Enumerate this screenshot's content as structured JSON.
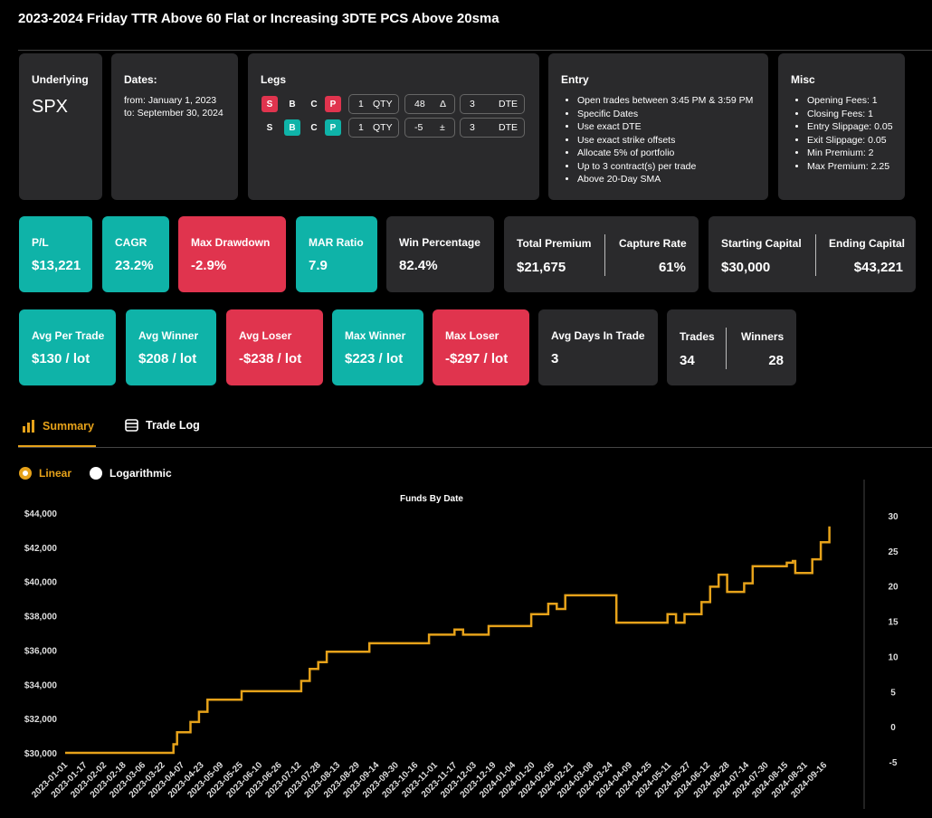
{
  "page_title": "2023-2024 Friday TTR Above 60 Flat or Increasing 3DTE PCS Above 20sma",
  "underlying": {
    "label": "Underlying",
    "value": "SPX"
  },
  "dates": {
    "label": "Dates:",
    "from": "from: January 1, 2023",
    "to": "to: September 30, 2024"
  },
  "legs": {
    "label": "Legs",
    "rows": [
      {
        "s": "S",
        "b": "B",
        "c": "C",
        "p": "P",
        "qty": "1",
        "qty_unit": "QTY",
        "delta": "48",
        "delta_sym": "Δ",
        "dte": "3",
        "dte_unit": "DTE"
      },
      {
        "s": "S",
        "b": "B",
        "c": "C",
        "p": "P",
        "qty": "1",
        "qty_unit": "QTY",
        "delta": "-5",
        "delta_sym": "±",
        "dte": "3",
        "dte_unit": "DTE"
      }
    ]
  },
  "entry": {
    "label": "Entry",
    "items": [
      "Open trades between 3:45 PM & 3:59 PM",
      "Specific Dates",
      "Use exact DTE",
      "Use exact strike offsets",
      "Allocate 5% of portfolio",
      "Up to 3 contract(s) per trade",
      "Above 20-Day SMA"
    ]
  },
  "misc": {
    "label": "Misc",
    "items": [
      "Opening Fees: 1",
      "Closing Fees: 1",
      "Entry Slippage: 0.05",
      "Exit Slippage: 0.05",
      "Min Premium: 2",
      "Max Premium: 2.25"
    ]
  },
  "stats_row1": {
    "pl": {
      "label": "P/L",
      "value": "$13,221"
    },
    "cagr": {
      "label": "CAGR",
      "value": "23.2%"
    },
    "max_drawdown": {
      "label": "Max Drawdown",
      "value": "-2.9%"
    },
    "mar": {
      "label": "MAR Ratio",
      "value": "7.9"
    },
    "win_pct": {
      "label": "Win Percentage",
      "value": "82.4%"
    },
    "total_premium": {
      "label": "Total Premium",
      "value": "$21,675"
    },
    "capture_rate": {
      "label": "Capture Rate",
      "value": "61%"
    },
    "starting_capital": {
      "label": "Starting Capital",
      "value": "$30,000"
    },
    "ending_capital": {
      "label": "Ending Capital",
      "value": "$43,221"
    }
  },
  "stats_row2": {
    "avg_per_trade": {
      "label": "Avg Per Trade",
      "value": "$130 / lot"
    },
    "avg_winner": {
      "label": "Avg Winner",
      "value": "$208 / lot"
    },
    "avg_loser": {
      "label": "Avg Loser",
      "value": "-$238 / lot"
    },
    "max_winner": {
      "label": "Max Winner",
      "value": "$223 / lot"
    },
    "max_loser": {
      "label": "Max Loser",
      "value": "-$297 / lot"
    },
    "avg_days": {
      "label": "Avg Days In Trade",
      "value": "3"
    },
    "trades": {
      "label": "Trades",
      "value": "34"
    },
    "winners": {
      "label": "Winners",
      "value": "28"
    }
  },
  "tabs": {
    "summary": "Summary",
    "trade_log": "Trade Log"
  },
  "scale": {
    "linear": "Linear",
    "log": "Logarithmic"
  },
  "colors": {
    "teal": "#0fb3a8",
    "red": "#e0344e",
    "accent": "#e6a21a",
    "card": "#2a2a2c"
  },
  "chart_data": {
    "type": "line",
    "title": "Funds By Date",
    "y_ticks": [
      "$30,000",
      "$32,000",
      "$34,000",
      "$36,000",
      "$38,000",
      "$40,000",
      "$42,000",
      "$44,000"
    ],
    "ylim": [
      30000,
      44000
    ],
    "y2_ticks": [
      "-5",
      "0",
      "5",
      "10",
      "15",
      "20",
      "25",
      "30"
    ],
    "y2lim": [
      -5,
      30
    ],
    "x_ticks": [
      "2023-01-01",
      "2023-01-17",
      "2023-02-02",
      "2023-02-18",
      "2023-03-06",
      "2023-03-22",
      "2023-04-07",
      "2023-04-23",
      "2023-05-09",
      "2023-05-25",
      "2023-06-10",
      "2023-06-26",
      "2023-07-12",
      "2023-07-28",
      "2023-08-13",
      "2023-08-29",
      "2023-09-14",
      "2023-09-30",
      "2023-10-16",
      "2023-11-01",
      "2023-11-17",
      "2023-12-03",
      "2023-12-19",
      "2024-01-04",
      "2024-01-20",
      "2024-02-05",
      "2024-02-21",
      "2024-03-08",
      "2024-03-24",
      "2024-04-09",
      "2024-04-25",
      "2024-05-11",
      "2024-05-27",
      "2024-06-12",
      "2024-06-28",
      "2024-07-14",
      "2024-07-30",
      "2024-08-15",
      "2024-08-31",
      "2024-09-16"
    ],
    "series": [
      {
        "name": "Funds",
        "color": "#e6a21a",
        "points": [
          [
            "2023-01-01",
            30000
          ],
          [
            "2023-03-31",
            30000
          ],
          [
            "2023-03-31",
            30500
          ],
          [
            "2023-04-03",
            30500
          ],
          [
            "2023-04-03",
            31200
          ],
          [
            "2023-04-14",
            31200
          ],
          [
            "2023-04-14",
            31800
          ],
          [
            "2023-04-21",
            31800
          ],
          [
            "2023-04-21",
            32400
          ],
          [
            "2023-04-28",
            32400
          ],
          [
            "2023-04-28",
            33100
          ],
          [
            "2023-05-26",
            33100
          ],
          [
            "2023-05-26",
            33600
          ],
          [
            "2023-07-14",
            33600
          ],
          [
            "2023-07-14",
            34200
          ],
          [
            "2023-07-21",
            34200
          ],
          [
            "2023-07-21",
            34900
          ],
          [
            "2023-07-28",
            34900
          ],
          [
            "2023-07-28",
            35300
          ],
          [
            "2023-08-04",
            35300
          ],
          [
            "2023-08-04",
            35900
          ],
          [
            "2023-09-08",
            35900
          ],
          [
            "2023-09-08",
            36400
          ],
          [
            "2023-10-27",
            36400
          ],
          [
            "2023-10-27",
            36900
          ],
          [
            "2023-11-17",
            36900
          ],
          [
            "2023-11-17",
            37200
          ],
          [
            "2023-11-24",
            37200
          ],
          [
            "2023-11-24",
            37200
          ],
          [
            "2023-11-24",
            36900
          ],
          [
            "2023-11-24",
            36900
          ],
          [
            "2023-11-24",
            36900
          ],
          [
            "2023-12-15",
            36900
          ],
          [
            "2023-12-15",
            37400
          ],
          [
            "2024-01-19",
            37400
          ],
          [
            "2024-01-19",
            38100
          ],
          [
            "2024-02-02",
            38100
          ],
          [
            "2024-02-02",
            38700
          ],
          [
            "2024-02-09",
            38700
          ],
          [
            "2024-02-09",
            38400
          ],
          [
            "2024-02-14",
            38400
          ],
          [
            "2024-02-14",
            38400
          ],
          [
            "2024-02-16",
            38400
          ],
          [
            "2024-02-16",
            39200
          ],
          [
            "2024-03-29",
            39200
          ],
          [
            "2024-03-29",
            37600
          ],
          [
            "2024-05-10",
            37600
          ],
          [
            "2024-05-10",
            38100
          ],
          [
            "2024-05-17",
            38100
          ],
          [
            "2024-05-17",
            37600
          ],
          [
            "2024-05-24",
            37600
          ],
          [
            "2024-05-24",
            38100
          ],
          [
            "2024-06-07",
            38100
          ],
          [
            "2024-06-07",
            38800
          ],
          [
            "2024-06-14",
            38800
          ],
          [
            "2024-06-14",
            39700
          ],
          [
            "2024-06-21",
            39700
          ],
          [
            "2024-06-21",
            40400
          ],
          [
            "2024-06-28",
            40400
          ],
          [
            "2024-06-28",
            39400
          ],
          [
            "2024-07-12",
            39400
          ],
          [
            "2024-07-12",
            39900
          ],
          [
            "2024-07-19",
            39900
          ],
          [
            "2024-07-19",
            40900
          ],
          [
            "2024-08-16",
            40900
          ],
          [
            "2024-08-16",
            41100
          ],
          [
            "2024-08-21",
            41100
          ],
          [
            "2024-08-21",
            41200
          ],
          [
            "2024-08-23",
            41200
          ],
          [
            "2024-08-23",
            40500
          ],
          [
            "2024-09-06",
            40500
          ],
          [
            "2024-09-06",
            41300
          ],
          [
            "2024-09-13",
            41300
          ],
          [
            "2024-09-13",
            42300
          ],
          [
            "2024-09-20",
            42300
          ],
          [
            "2024-09-20",
            43221
          ]
        ]
      }
    ]
  }
}
